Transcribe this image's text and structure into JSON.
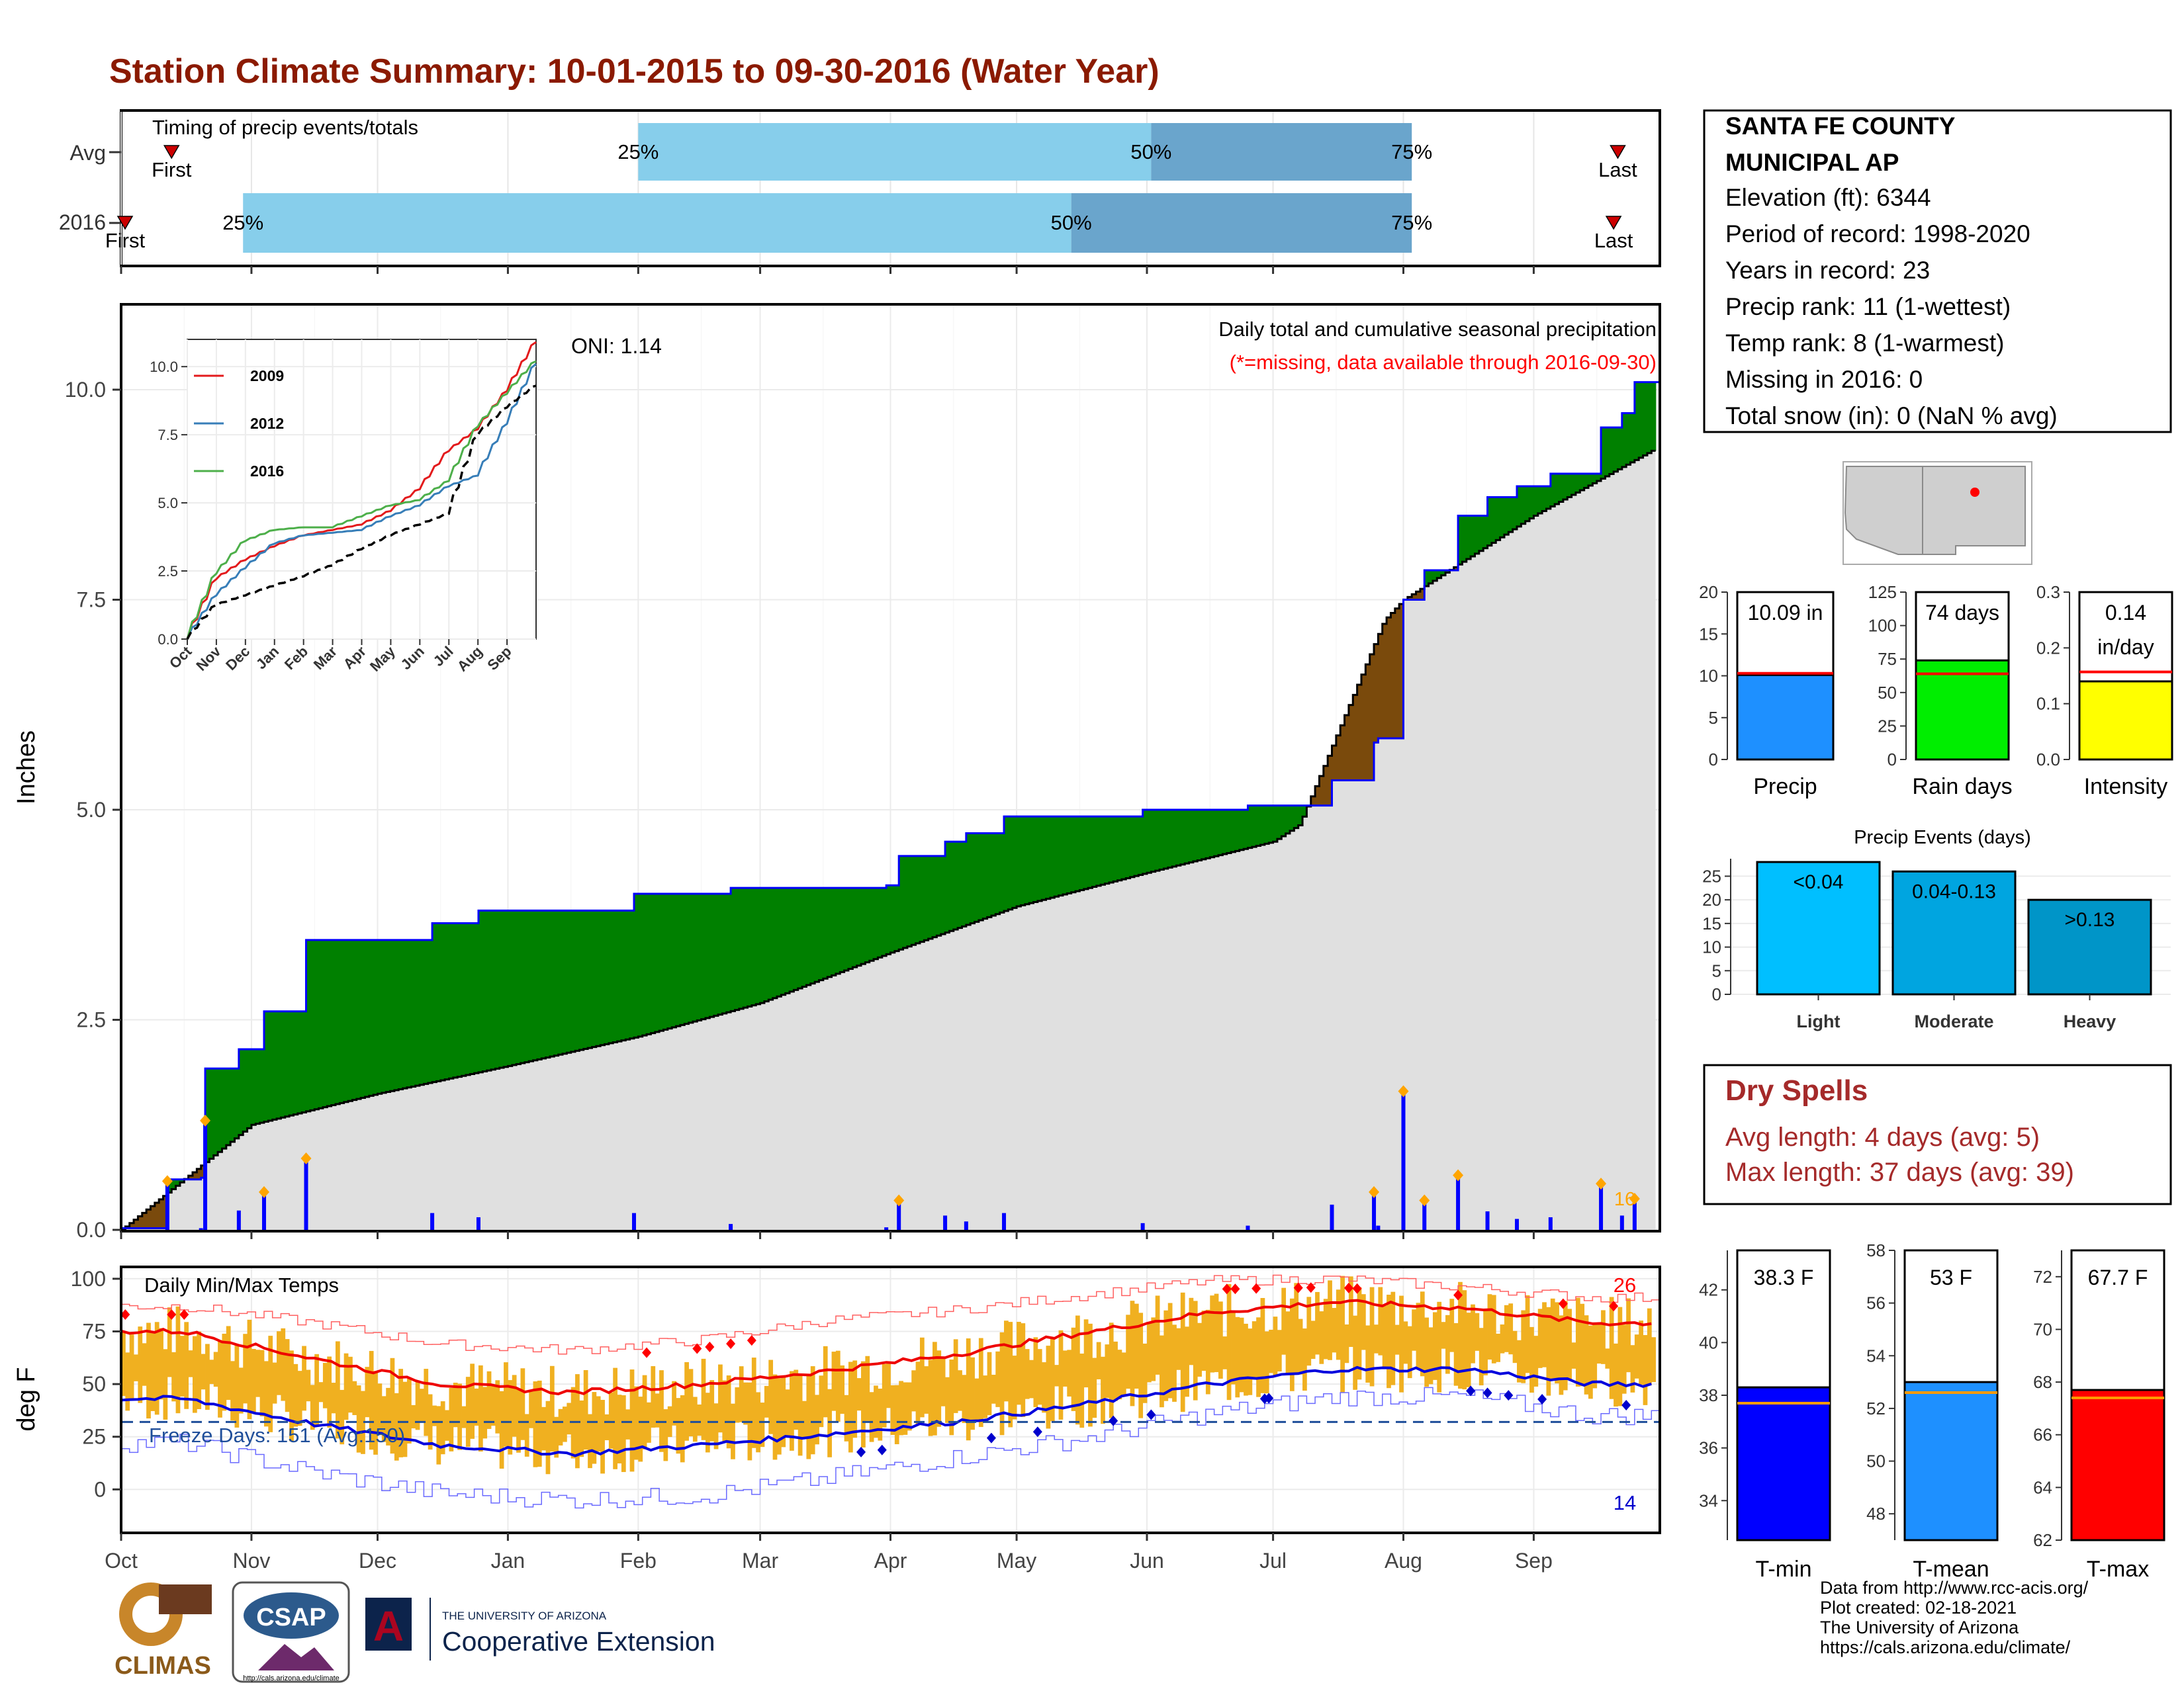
{
  "title": "Station Climate Summary: 10-01-2015 to 09-30-2016 (Water Year)",
  "timing": {
    "title": "Timing of precip events/totals",
    "rows": [
      {
        "label": "Avg",
        "first_label": "First",
        "last_label": "Last",
        "first_day": 12,
        "last_day": 356,
        "q25": 123,
        "q50": 245,
        "q75": 307,
        "q25_label": "25%",
        "q50_label": "50%",
        "q75_label": "75%"
      },
      {
        "label": "2016",
        "first_label": "First",
        "last_label": "Last",
        "first_day": 0,
        "last_day": 355,
        "q25": 29,
        "q50": 226,
        "q75": 307,
        "q25_label": "25%",
        "q50_label": "50%",
        "q75_label": "75%"
      }
    ]
  },
  "station": {
    "name_line1": "SANTA FE COUNTY",
    "name_line2": "MUNICIPAL AP",
    "lines": [
      "Elevation (ft): 6344",
      "Period of record: 1998-2020",
      "Years in record: 23",
      "Precip rank: 11 (1-wettest)",
      "Temp rank: 8 (1-warmest)",
      "Missing in 2016: 0",
      "Total snow (in): 0 (NaN % avg)"
    ]
  },
  "precip": {
    "ylabel": "Inches",
    "yticks": [
      "0.0",
      "2.5",
      "5.0",
      "7.5",
      "10.0"
    ],
    "oni": "ONI: 1.14",
    "label1": "Daily total and cumulative seasonal precipitation",
    "label2": "(*=missing, data available through 2016-09-30)",
    "count_label": "16"
  },
  "inset": {
    "yticks": [
      "0.0",
      "2.5",
      "5.0",
      "7.5",
      "10.0"
    ],
    "months": [
      "Oct",
      "Nov",
      "Dec",
      "Jan",
      "Feb",
      "Mar",
      "Apr",
      "May",
      "Jun",
      "Jul",
      "Aug",
      "Sep"
    ],
    "legend": [
      {
        "name": "2009",
        "color": "#e31a1c"
      },
      {
        "name": "2012",
        "color": "#377eb8"
      },
      {
        "name": "2016",
        "color": "#4daf4a"
      }
    ]
  },
  "temp": {
    "ylabel": "deg F",
    "title": "Daily Min/Max Temps",
    "yticks": [
      "0",
      "25",
      "50",
      "75",
      "100"
    ],
    "freeze_label": "Freeze Days: 151 (Avg:150)",
    "high_count": "26",
    "low_count": "14"
  },
  "months": [
    "Oct",
    "Nov",
    "Dec",
    "Jan",
    "Feb",
    "Mar",
    "Apr",
    "May",
    "Jun",
    "Jul",
    "Aug",
    "Sep"
  ],
  "small_bars": {
    "precip": {
      "label": "Precip",
      "value_text": "10.09 in",
      "yticks": [
        "0",
        "5",
        "10",
        "15",
        "20"
      ],
      "value": 10.09,
      "avg": 10.3,
      "max": 20,
      "color": "#1e90ff"
    },
    "raindays": {
      "label": "Rain days",
      "value_text": "74 days",
      "yticks": [
        "0",
        "25",
        "50",
        "75",
        "100",
        "125"
      ],
      "value": 74,
      "avg": 64,
      "max": 125,
      "color": "#00ee00"
    },
    "intensity": {
      "label": "Intensity",
      "value_text_1": "0.14",
      "value_text_2": "in/day",
      "yticks": [
        "0.0",
        "0.1",
        "0.2",
        "0.3"
      ],
      "value": 0.14,
      "avg": 0.157,
      "max": 0.3,
      "color": "#ffff00"
    }
  },
  "events": {
    "title": "Precip Events (days)",
    "yticks": [
      "0",
      "5",
      "10",
      "15",
      "20",
      "25"
    ],
    "bars": [
      {
        "label": "Light",
        "value_text": "<0.04",
        "value": 28,
        "color": "#00bfff"
      },
      {
        "label": "Moderate",
        "value_text": "0.04-0.13",
        "value": 26,
        "color": "#00a5e0"
      },
      {
        "label": "Heavy",
        "value_text": ">0.13",
        "value": 20,
        "color": "#0095c8"
      }
    ]
  },
  "dry_spells": {
    "title": "Dry Spells",
    "avg_line": "Avg length: 4 days (avg: 5)",
    "max_line": "Max length: 37 days (avg: 39)",
    "color": "#a52a2a"
  },
  "temp_bars": {
    "tmin": {
      "label": "T-min",
      "value_text": "38.3 F",
      "yticks": [
        "34",
        "36",
        "38",
        "40",
        "42"
      ],
      "value": 38.3,
      "avg": 37.7,
      "min": 32.5,
      "max": 43.5,
      "color": "#0000ff"
    },
    "tmean": {
      "label": "T-mean",
      "value_text": "53 F",
      "yticks": [
        "48",
        "50",
        "52",
        "54",
        "56",
        "58"
      ],
      "value": 53.0,
      "avg": 52.6,
      "min": 47,
      "max": 58,
      "color": "#1e90ff"
    },
    "tmax": {
      "label": "T-max",
      "value_text": "67.7 F",
      "yticks": [
        "62",
        "64",
        "66",
        "68",
        "70",
        "72"
      ],
      "value": 67.7,
      "avg": 67.4,
      "min": 62,
      "max": 73,
      "color": "#ff0000"
    }
  },
  "logos": {
    "climas": "CLIMAS",
    "csap": "CSAP",
    "csap_url": "http://cals.arizona.edu/climate",
    "ua_small": "THE UNIVERSITY OF ARIZONA",
    "ua_big": "Cooperative Extension"
  },
  "credits": [
    "Data from http://www.rcc-acis.org/",
    "Plot created: 02-18-2021",
    "The University of Arizona",
    "https://cals.arizona.edu/climate/"
  ],
  "chart_data": [
    {
      "type": "area",
      "title": "Daily total and cumulative seasonal precipitation",
      "xlabel": "",
      "ylabel": "Inches",
      "ylim": [
        0,
        11
      ],
      "series": [
        {
          "name": "2016",
          "x": [
            "2015-10-01",
            "2015-10-12",
            "2015-10-20",
            "2015-10-21",
            "2015-10-29",
            "2015-11-04",
            "2015-11-14",
            "2015-12-14",
            "2015-12-25",
            "2016-01-31",
            "2016-02-23",
            "2016-03-31",
            "2016-04-03",
            "2016-04-14",
            "2016-04-19",
            "2016-04-28",
            "2016-05-31",
            "2016-06-25",
            "2016-07-15",
            "2016-07-25",
            "2016-07-26",
            "2016-08-01",
            "2016-08-06",
            "2016-08-14",
            "2016-08-21",
            "2016-08-28",
            "2016-09-05",
            "2016-09-17",
            "2016-09-22",
            "2016-09-25",
            "2016-09-30"
          ],
          "values": [
            0.02,
            0.6,
            0.62,
            1.92,
            2.15,
            2.6,
            3.45,
            3.65,
            3.8,
            4.0,
            4.07,
            4.1,
            4.45,
            4.62,
            4.72,
            4.92,
            5.0,
            5.05,
            5.35,
            5.8,
            5.85,
            7.5,
            7.85,
            8.5,
            8.72,
            8.85,
            9.0,
            9.55,
            9.72,
            10.09,
            10.09
          ]
        }
      ],
      "average_cumulative": {
        "x": [
          "2015-10-01",
          "2015-11-01",
          "2015-12-01",
          "2016-01-01",
          "2016-02-01",
          "2016-03-01",
          "2016-04-01",
          "2016-05-01",
          "2016-06-01",
          "2016-07-01",
          "2016-08-01",
          "2016-09-01",
          "2016-09-30"
        ],
        "values": [
          0,
          1.25,
          1.62,
          1.95,
          2.3,
          2.7,
          3.3,
          3.85,
          4.25,
          4.62,
          7.5,
          8.5,
          9.3
        ]
      }
    },
    {
      "type": "line",
      "xlabel": "",
      "ylabel": "",
      "ylim": [
        0,
        11
      ],
      "series": [
        {
          "name": "2009",
          "x": [
            "Oct",
            "Nov",
            "Dec",
            "Jan",
            "Feb",
            "Mar",
            "Apr",
            "May",
            "Jun",
            "Jul",
            "Aug",
            "Sep",
            "Sep-end"
          ],
          "values": [
            0,
            2.2,
            2.9,
            3.4,
            3.8,
            4.0,
            4.2,
            4.7,
            5.5,
            6.9,
            7.7,
            9.1,
            10.9
          ]
        },
        {
          "name": "2012",
          "x": [
            "Oct",
            "Nov",
            "Dec",
            "Jan",
            "Feb",
            "Mar",
            "Apr",
            "May",
            "Jun",
            "Jul",
            "Aug",
            "Sep",
            "Sep-end"
          ],
          "values": [
            0,
            1.6,
            2.6,
            3.5,
            3.8,
            3.9,
            4.0,
            4.5,
            4.9,
            5.6,
            6.0,
            7.9,
            10.1
          ]
        },
        {
          "name": "2016",
          "x": [
            "Oct",
            "Nov",
            "Dec",
            "Jan",
            "Feb",
            "Mar",
            "Apr",
            "May",
            "Jun",
            "Jul",
            "Aug",
            "Sep",
            "Sep-end"
          ],
          "values": [
            0,
            2.4,
            3.6,
            4.0,
            4.1,
            4.1,
            4.5,
            4.9,
            5.1,
            5.8,
            7.8,
            9.0,
            10.2
          ]
        },
        {
          "name": "Average",
          "x": [
            "Oct",
            "Nov",
            "Dec",
            "Jan",
            "Feb",
            "Mar",
            "Apr",
            "May",
            "Jun",
            "Jul",
            "Aug",
            "Sep",
            "Sep-end"
          ],
          "values": [
            0,
            1.25,
            1.6,
            1.95,
            2.3,
            2.7,
            3.3,
            3.8,
            4.2,
            4.6,
            7.5,
            8.5,
            9.3
          ]
        }
      ]
    },
    {
      "type": "line",
      "title": "Daily Min/Max Temps",
      "xlabel": "",
      "ylabel": "deg F",
      "ylim": [
        -20,
        105
      ],
      "series": [
        {
          "name": "Avg Max",
          "x": [
            "Oct",
            "Nov",
            "Dec",
            "Jan",
            "Feb",
            "Mar",
            "Apr",
            "May",
            "Jun",
            "Jul",
            "Aug",
            "Sep"
          ],
          "values": [
            75,
            62,
            50,
            46,
            50,
            56,
            64,
            74,
            84,
            89,
            86,
            79
          ]
        },
        {
          "name": "Avg Min",
          "x": [
            "Oct",
            "Nov",
            "Dec",
            "Jan",
            "Feb",
            "Mar",
            "Apr",
            "May",
            "Jun",
            "Jul",
            "Aug",
            "Sep"
          ],
          "values": [
            43,
            31,
            21,
            17,
            21,
            26,
            32,
            40,
            50,
            57,
            57,
            50
          ]
        },
        {
          "name": "Record High",
          "x": [
            "Oct",
            "Nov",
            "Dec",
            "Jan",
            "Feb",
            "Mar",
            "Apr",
            "May",
            "Jun",
            "Jul",
            "Aug",
            "Sep"
          ],
          "values": [
            87,
            79,
            69,
            66,
            71,
            80,
            85,
            92,
            99,
            100,
            96,
            91
          ]
        },
        {
          "name": "Record Low",
          "x": [
            "Oct",
            "Nov",
            "Dec",
            "Jan",
            "Feb",
            "Mar",
            "Apr",
            "May",
            "Jun",
            "Jul",
            "Aug",
            "Sep"
          ],
          "values": [
            22,
            8,
            -2,
            -5,
            -3,
            5,
            15,
            24,
            36,
            44,
            44,
            35
          ]
        }
      ],
      "freeze_line": 32
    },
    {
      "type": "bar",
      "title": "Precip Events (days)",
      "categories": [
        "Light",
        "Moderate",
        "Heavy"
      ],
      "values": [
        28,
        26,
        20
      ],
      "ylim": [
        0,
        28
      ]
    }
  ]
}
